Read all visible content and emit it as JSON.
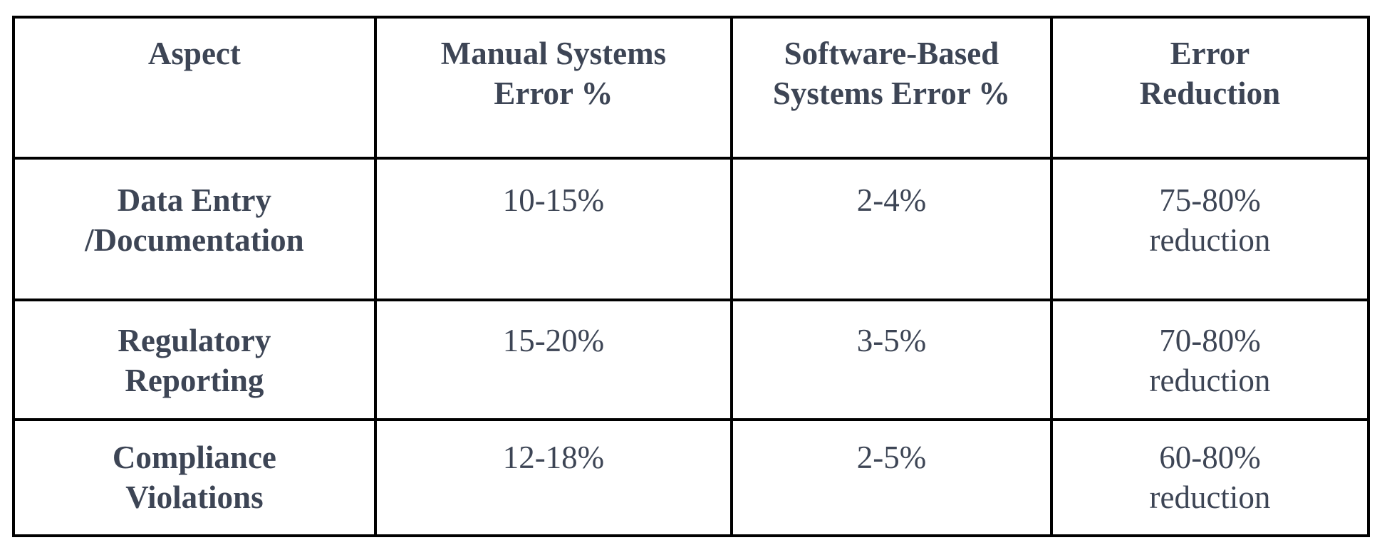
{
  "page": {
    "background_color": "#ffffff"
  },
  "table": {
    "text_color": "#3d4555",
    "border_color": "#000000",
    "headers": [
      "Aspect",
      "Manual Systems\nError %",
      "Software-Based\nSystems Error %",
      "Error\nReduction"
    ],
    "rows": [
      {
        "aspect": "Data Entry\n/Documentation",
        "manual_error": "10-15%",
        "software_error": "2-4%",
        "error_reduction": "75-80%\nreduction"
      },
      {
        "aspect": "Regulatory\nReporting",
        "manual_error": "15-20%",
        "software_error": "3-5%",
        "error_reduction": "70-80%\nreduction"
      },
      {
        "aspect": "Compliance\nViolations",
        "manual_error": "12-18%",
        "software_error": "2-5%",
        "error_reduction": "60-80%\nreduction"
      }
    ]
  }
}
